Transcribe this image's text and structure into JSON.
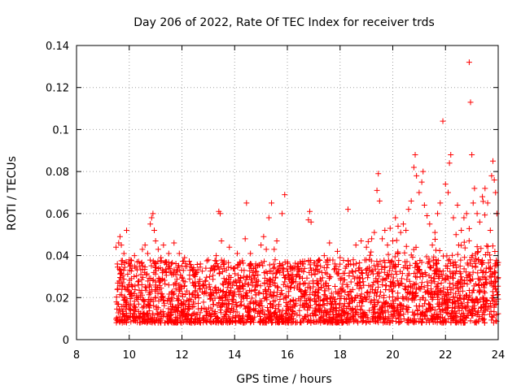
{
  "chart_data": {
    "type": "scatter",
    "title": "Day 206 of 2022, Rate Of TEC Index for receiver trds",
    "xlabel": "GPS time / hours",
    "ylabel": "ROTI / TECUs",
    "xlim": [
      8,
      24
    ],
    "ylim": [
      0,
      0.14
    ],
    "xticks": [
      8,
      10,
      12,
      14,
      16,
      18,
      20,
      22,
      24
    ],
    "xtick_labels": [
      "8",
      "10",
      "12",
      "14",
      "16",
      "18",
      "20",
      "22",
      "24"
    ],
    "yticks": [
      0,
      0.02,
      0.04,
      0.06,
      0.08,
      0.1,
      0.12,
      0.14
    ],
    "ytick_labels": [
      "0",
      "0.02",
      "0.04",
      "0.06",
      "0.08",
      "0.1",
      "0.12",
      "0.14"
    ],
    "grid": true,
    "marker": "+",
    "color": "#ff0000",
    "series": [
      {
        "name": "ROTI",
        "points": [
          [
            9.5,
            0.044
          ],
          [
            9.55,
            0.036
          ],
          [
            9.6,
            0.046
          ],
          [
            9.65,
            0.049
          ],
          [
            9.7,
            0.045
          ],
          [
            9.8,
            0.041
          ],
          [
            9.9,
            0.052
          ],
          [
            10.0,
            0.038
          ],
          [
            10.1,
            0.034
          ],
          [
            10.2,
            0.04
          ],
          [
            10.3,
            0.037
          ],
          [
            10.4,
            0.035
          ],
          [
            10.5,
            0.043
          ],
          [
            10.6,
            0.045
          ],
          [
            10.7,
            0.041
          ],
          [
            10.8,
            0.055
          ],
          [
            10.85,
            0.058
          ],
          [
            10.9,
            0.06
          ],
          [
            10.95,
            0.052
          ],
          [
            11.0,
            0.047
          ],
          [
            11.1,
            0.043
          ],
          [
            11.2,
            0.039
          ],
          [
            11.3,
            0.045
          ],
          [
            11.4,
            0.037
          ],
          [
            11.5,
            0.041
          ],
          [
            11.6,
            0.036
          ],
          [
            11.7,
            0.046
          ],
          [
            11.8,
            0.033
          ],
          [
            11.9,
            0.041
          ],
          [
            12.0,
            0.035
          ],
          [
            12.1,
            0.039
          ],
          [
            12.3,
            0.033
          ],
          [
            12.5,
            0.03
          ],
          [
            12.7,
            0.036
          ],
          [
            12.9,
            0.028
          ],
          [
            13.1,
            0.034
          ],
          [
            13.3,
            0.04
          ],
          [
            13.4,
            0.061
          ],
          [
            13.45,
            0.06
          ],
          [
            13.5,
            0.047
          ],
          [
            13.6,
            0.036
          ],
          [
            13.8,
            0.044
          ],
          [
            14.0,
            0.034
          ],
          [
            14.1,
            0.041
          ],
          [
            14.2,
            0.037
          ],
          [
            14.4,
            0.048
          ],
          [
            14.45,
            0.065
          ],
          [
            14.6,
            0.041
          ],
          [
            14.8,
            0.036
          ],
          [
            15.0,
            0.045
          ],
          [
            15.1,
            0.049
          ],
          [
            15.2,
            0.043
          ],
          [
            15.3,
            0.058
          ],
          [
            15.4,
            0.065
          ],
          [
            15.5,
            0.043
          ],
          [
            15.6,
            0.047
          ],
          [
            15.8,
            0.06
          ],
          [
            15.9,
            0.069
          ],
          [
            16.0,
            0.037
          ],
          [
            16.2,
            0.034
          ],
          [
            16.4,
            0.031
          ],
          [
            16.6,
            0.036
          ],
          [
            16.8,
            0.057
          ],
          [
            16.85,
            0.061
          ],
          [
            16.9,
            0.056
          ],
          [
            17.0,
            0.033
          ],
          [
            17.2,
            0.038
          ],
          [
            17.4,
            0.04
          ],
          [
            17.6,
            0.046
          ],
          [
            17.8,
            0.036
          ],
          [
            17.9,
            0.042
          ],
          [
            18.0,
            0.039
          ],
          [
            18.2,
            0.034
          ],
          [
            18.3,
            0.062
          ],
          [
            18.4,
            0.036
          ],
          [
            18.5,
            0.038
          ],
          [
            18.6,
            0.045
          ],
          [
            18.7,
            0.034
          ],
          [
            18.8,
            0.047
          ],
          [
            19.0,
            0.044
          ],
          [
            19.2,
            0.048
          ],
          [
            19.3,
            0.051
          ],
          [
            19.4,
            0.071
          ],
          [
            19.45,
            0.079
          ],
          [
            19.5,
            0.066
          ],
          [
            19.6,
            0.048
          ],
          [
            19.7,
            0.052
          ],
          [
            19.8,
            0.045
          ],
          [
            19.9,
            0.053
          ],
          [
            20.0,
            0.047
          ],
          [
            20.1,
            0.058
          ],
          [
            20.2,
            0.054
          ],
          [
            20.3,
            0.051
          ],
          [
            20.4,
            0.055
          ],
          [
            20.5,
            0.052
          ],
          [
            20.6,
            0.062
          ],
          [
            20.7,
            0.066
          ],
          [
            20.8,
            0.082
          ],
          [
            20.85,
            0.088
          ],
          [
            20.9,
            0.078
          ],
          [
            21.0,
            0.07
          ],
          [
            21.1,
            0.075
          ],
          [
            21.15,
            0.08
          ],
          [
            21.2,
            0.064
          ],
          [
            21.3,
            0.059
          ],
          [
            21.4,
            0.055
          ],
          [
            21.5,
            0.045
          ],
          [
            21.6,
            0.051
          ],
          [
            21.7,
            0.06
          ],
          [
            21.8,
            0.065
          ],
          [
            21.9,
            0.104
          ],
          [
            22.0,
            0.074
          ],
          [
            22.1,
            0.07
          ],
          [
            22.15,
            0.084
          ],
          [
            22.2,
            0.088
          ],
          [
            22.3,
            0.058
          ],
          [
            22.4,
            0.05
          ],
          [
            22.5,
            0.045
          ],
          [
            22.6,
            0.052
          ],
          [
            22.7,
            0.058
          ],
          [
            22.8,
            0.06
          ],
          [
            22.9,
            0.132
          ],
          [
            22.95,
            0.113
          ],
          [
            23.0,
            0.088
          ],
          [
            23.05,
            0.065
          ],
          [
            23.1,
            0.072
          ],
          [
            23.2,
            0.06
          ],
          [
            23.3,
            0.056
          ],
          [
            23.4,
            0.068
          ],
          [
            23.5,
            0.072
          ],
          [
            23.6,
            0.065
          ],
          [
            23.7,
            0.052
          ],
          [
            23.75,
            0.078
          ],
          [
            23.8,
            0.085
          ],
          [
            23.85,
            0.076
          ],
          [
            23.9,
            0.07
          ],
          [
            23.95,
            0.06
          ]
        ]
      }
    ]
  }
}
